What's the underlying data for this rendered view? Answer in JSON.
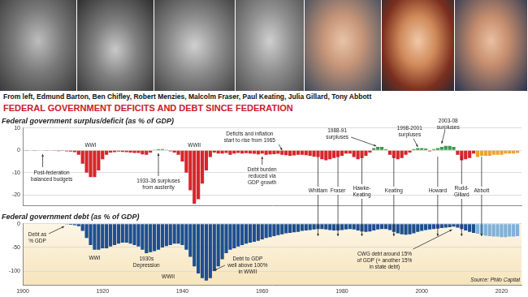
{
  "header": {
    "caption": "From left, Edmund Barton, Ben Chifley, Robert Menzies, Malcolm Fraser, Paul Keating, Julia Gillard, Tony Abbott",
    "title": "FEDERAL GOVERNMENT DEFICITS AND DEBT SINCE FEDERATION"
  },
  "chart_data": [
    {
      "type": "bar",
      "title": "Federal government surplus/deficit (as % of GDP)",
      "x": [
        1901,
        1902,
        1903,
        1904,
        1905,
        1906,
        1907,
        1908,
        1909,
        1910,
        1911,
        1912,
        1913,
        1914,
        1915,
        1916,
        1917,
        1918,
        1919,
        1920,
        1921,
        1922,
        1923,
        1924,
        1925,
        1926,
        1927,
        1928,
        1929,
        1930,
        1931,
        1932,
        1933,
        1934,
        1935,
        1936,
        1937,
        1938,
        1939,
        1940,
        1941,
        1942,
        1943,
        1944,
        1945,
        1946,
        1947,
        1948,
        1949,
        1950,
        1951,
        1952,
        1953,
        1954,
        1955,
        1956,
        1957,
        1958,
        1959,
        1960,
        1961,
        1962,
        1963,
        1964,
        1965,
        1966,
        1967,
        1968,
        1969,
        1970,
        1971,
        1972,
        1973,
        1974,
        1975,
        1976,
        1977,
        1978,
        1979,
        1980,
        1981,
        1982,
        1983,
        1984,
        1985,
        1986,
        1987,
        1988,
        1989,
        1990,
        1991,
        1992,
        1993,
        1994,
        1995,
        1996,
        1997,
        1998,
        1999,
        2000,
        2001,
        2002,
        2003,
        2004,
        2005,
        2006,
        2007,
        2008,
        2009,
        2010,
        2011,
        2012,
        2013,
        2014,
        2015,
        2016,
        2017,
        2018,
        2019,
        2020,
        2021,
        2022,
        2023,
        2024
      ],
      "values": [
        -0.3,
        -0.2,
        -0.3,
        -0.2,
        -0.2,
        -0.3,
        -0.2,
        -0.3,
        -0.4,
        -0.3,
        -0.5,
        -0.6,
        -0.8,
        -2,
        -6,
        -10,
        -12,
        -12,
        -9,
        -4,
        -2,
        -1,
        -0.8,
        -0.6,
        -0.7,
        -0.8,
        -1,
        -1.2,
        -1.2,
        -1.8,
        -2,
        -1,
        0.3,
        0.5,
        0.5,
        0.3,
        -0.5,
        -1,
        -2,
        -5,
        -10,
        -18,
        -24,
        -22,
        -15,
        -9,
        -3,
        -1,
        -1.5,
        -1.5,
        -1.2,
        -2,
        -1.5,
        -1.2,
        -1.5,
        -1.3,
        -1.5,
        -1.6,
        -1.8,
        -1.5,
        -2,
        -1.8,
        -1.7,
        -1.6,
        -2,
        -2.2,
        -2.5,
        -2.3,
        -2,
        -2,
        -2.2,
        -2.5,
        -2.8,
        -3,
        -4,
        -4.5,
        -4,
        -3.5,
        -3,
        -2.5,
        -1.5,
        -1.5,
        -3,
        -4,
        -3.5,
        -2.5,
        -1,
        1,
        1.5,
        1.5,
        0.5,
        -2,
        -3.5,
        -4,
        -3.5,
        -2,
        -1,
        0.5,
        1,
        1,
        0.8,
        -0.5,
        0.5,
        1,
        1.5,
        2,
        2,
        1.5,
        -2,
        -4.5,
        -4,
        -3.5,
        -1.5,
        -3,
        -2.5,
        -2.5,
        -2.5,
        -2,
        -2,
        -2,
        -1.5,
        -1.5,
        -1.5,
        -1.2
      ],
      "colors": [
        "#d7262b",
        "#d7262b",
        "#d7262b",
        "#d7262b",
        "#d7262b",
        "#d7262b",
        "#d7262b",
        "#d7262b",
        "#d7262b",
        "#d7262b",
        "#d7262b",
        "#d7262b",
        "#d7262b",
        "#d7262b",
        "#d7262b",
        "#d7262b",
        "#d7262b",
        "#d7262b",
        "#d7262b",
        "#d7262b",
        "#d7262b",
        "#d7262b",
        "#d7262b",
        "#d7262b",
        "#d7262b",
        "#d7262b",
        "#d7262b",
        "#d7262b",
        "#d7262b",
        "#d7262b",
        "#d7262b",
        "#d7262b",
        "#3a9a4a",
        "#3a9a4a",
        "#3a9a4a",
        "#3a9a4a",
        "#d7262b",
        "#d7262b",
        "#d7262b",
        "#d7262b",
        "#d7262b",
        "#d7262b",
        "#d7262b",
        "#d7262b",
        "#d7262b",
        "#d7262b",
        "#d7262b",
        "#d7262b",
        "#d7262b",
        "#d7262b",
        "#d7262b",
        "#d7262b",
        "#d7262b",
        "#d7262b",
        "#d7262b",
        "#d7262b",
        "#d7262b",
        "#d7262b",
        "#d7262b",
        "#d7262b",
        "#d7262b",
        "#d7262b",
        "#d7262b",
        "#d7262b",
        "#d7262b",
        "#d7262b",
        "#d7262b",
        "#d7262b",
        "#d7262b",
        "#d7262b",
        "#d7262b",
        "#d7262b",
        "#d7262b",
        "#d7262b",
        "#d7262b",
        "#d7262b",
        "#d7262b",
        "#d7262b",
        "#d7262b",
        "#d7262b",
        "#d7262b",
        "#d7262b",
        "#d7262b",
        "#d7262b",
        "#d7262b",
        "#d7262b",
        "#d7262b",
        "#3a9a4a",
        "#3a9a4a",
        "#3a9a4a",
        "#3a9a4a",
        "#d7262b",
        "#d7262b",
        "#d7262b",
        "#d7262b",
        "#d7262b",
        "#d7262b",
        "#3a9a4a",
        "#3a9a4a",
        "#3a9a4a",
        "#3a9a4a",
        "#d7262b",
        "#3a9a4a",
        "#3a9a4a",
        "#3a9a4a",
        "#3a9a4a",
        "#3a9a4a",
        "#3a9a4a",
        "#d7262b",
        "#d7262b",
        "#d7262b",
        "#d7262b",
        "#d7262b",
        "#f0a12a",
        "#f0a12a",
        "#f0a12a",
        "#f0a12a",
        "#f0a12a",
        "#f0a12a",
        "#f0a12a",
        "#f0a12a",
        "#f0a12a",
        "#f0a12a",
        "#f0a12a"
      ],
      "xlim": [
        1900,
        2025
      ],
      "ylim": [
        -25,
        10
      ],
      "yticks": [
        -20,
        -10,
        0,
        10
      ],
      "grid": true,
      "tick_labels": "y",
      "annotations": [
        {
          "text": "Post-federation\nbalanced budgets",
          "x": 1905
        },
        {
          "text": "WWI",
          "x": 1917
        },
        {
          "text": "1933-36 surpluses\nfrom austerity",
          "x": 1934
        },
        {
          "text": "WWII",
          "x": 1943
        },
        {
          "text": "Debt burden\nreduced via\nGDP growth",
          "x": 1960
        },
        {
          "text": "Deficits and inflation\nstart to rise from 1965",
          "x": 1965
        },
        {
          "text": "1988-91\nsurpluses",
          "x": 1989
        },
        {
          "text": "1998-2001\nsurpluses",
          "x": 1999
        },
        {
          "text": "2003-08\nsurpluses",
          "x": 2005
        },
        {
          "text": "Whitlam",
          "x": 1974
        },
        {
          "text": "Fraser",
          "x": 1979
        },
        {
          "text": "Hawke-\nKeating",
          "x": 1985
        },
        {
          "text": "Keating",
          "x": 1993
        },
        {
          "text": "Howard",
          "x": 2004
        },
        {
          "text": "Rudd-\nGillard",
          "x": 2010
        },
        {
          "text": "Abbott",
          "x": 2015
        }
      ]
    },
    {
      "type": "bar",
      "title": "Federal government debt (as % of GDP)",
      "x": [
        1901,
        1902,
        1903,
        1904,
        1905,
        1906,
        1907,
        1908,
        1909,
        1910,
        1911,
        1912,
        1913,
        1914,
        1915,
        1916,
        1917,
        1918,
        1919,
        1920,
        1921,
        1922,
        1923,
        1924,
        1925,
        1926,
        1927,
        1928,
        1929,
        1930,
        1931,
        1932,
        1933,
        1934,
        1935,
        1936,
        1937,
        1938,
        1939,
        1940,
        1941,
        1942,
        1943,
        1944,
        1945,
        1946,
        1947,
        1948,
        1949,
        1950,
        1951,
        1952,
        1953,
        1954,
        1955,
        1956,
        1957,
        1958,
        1959,
        1960,
        1961,
        1962,
        1963,
        1964,
        1965,
        1966,
        1967,
        1968,
        1969,
        1970,
        1971,
        1972,
        1973,
        1974,
        1975,
        1976,
        1977,
        1978,
        1979,
        1980,
        1981,
        1982,
        1983,
        1984,
        1985,
        1986,
        1987,
        1988,
        1989,
        1990,
        1991,
        1992,
        1993,
        1994,
        1995,
        1996,
        1997,
        1998,
        1999,
        2000,
        2001,
        2002,
        2003,
        2004,
        2005,
        2006,
        2007,
        2008,
        2009,
        2010,
        2011,
        2012,
        2013,
        2014,
        2015,
        2016,
        2017,
        2018,
        2019,
        2020,
        2021,
        2022,
        2023,
        2024
      ],
      "values": [
        0,
        0,
        0,
        0,
        0,
        0,
        0,
        0,
        0,
        0,
        -1,
        -2,
        -3,
        -5,
        -15,
        -30,
        -45,
        -55,
        -55,
        -52,
        -52,
        -48,
        -45,
        -42,
        -40,
        -40,
        -42,
        -45,
        -48,
        -55,
        -62,
        -60,
        -58,
        -55,
        -50,
        -47,
        -45,
        -42,
        -42,
        -45,
        -55,
        -70,
        -90,
        -105,
        -115,
        -120,
        -115,
        -100,
        -90,
        -75,
        -62,
        -55,
        -52,
        -48,
        -45,
        -42,
        -40,
        -38,
        -36,
        -33,
        -30,
        -28,
        -26,
        -24,
        -22,
        -20,
        -19,
        -18,
        -17,
        -15,
        -14,
        -13,
        -12,
        -11,
        -11,
        -12,
        -13,
        -14,
        -14,
        -13,
        -12,
        -11,
        -12,
        -14,
        -16,
        -17,
        -16,
        -14,
        -12,
        -11,
        -11,
        -13,
        -17,
        -20,
        -22,
        -23,
        -22,
        -20,
        -17,
        -15,
        -13,
        -12,
        -11,
        -10,
        -9,
        -8,
        -7,
        -6,
        -8,
        -11,
        -14,
        -17,
        -19,
        -21,
        -23,
        -25,
        -26,
        -27,
        -27,
        -28,
        -28,
        -27,
        -27,
        -26
      ],
      "colors": [
        "#1d4f91",
        "#1d4f91",
        "#1d4f91",
        "#1d4f91",
        "#1d4f91",
        "#1d4f91",
        "#1d4f91",
        "#1d4f91",
        "#1d4f91",
        "#1d4f91",
        "#1d4f91",
        "#1d4f91",
        "#1d4f91",
        "#1d4f91",
        "#1d4f91",
        "#1d4f91",
        "#1d4f91",
        "#1d4f91",
        "#1d4f91",
        "#1d4f91",
        "#1d4f91",
        "#1d4f91",
        "#1d4f91",
        "#1d4f91",
        "#1d4f91",
        "#1d4f91",
        "#1d4f91",
        "#1d4f91",
        "#1d4f91",
        "#1d4f91",
        "#1d4f91",
        "#1d4f91",
        "#1d4f91",
        "#1d4f91",
        "#1d4f91",
        "#1d4f91",
        "#1d4f91",
        "#1d4f91",
        "#1d4f91",
        "#1d4f91",
        "#1d4f91",
        "#1d4f91",
        "#1d4f91",
        "#1d4f91",
        "#1d4f91",
        "#1d4f91",
        "#1d4f91",
        "#1d4f91",
        "#1d4f91",
        "#1d4f91",
        "#1d4f91",
        "#1d4f91",
        "#1d4f91",
        "#1d4f91",
        "#1d4f91",
        "#1d4f91",
        "#1d4f91",
        "#1d4f91",
        "#1d4f91",
        "#1d4f91",
        "#1d4f91",
        "#1d4f91",
        "#1d4f91",
        "#1d4f91",
        "#1d4f91",
        "#1d4f91",
        "#1d4f91",
        "#1d4f91",
        "#1d4f91",
        "#1d4f91",
        "#1d4f91",
        "#1d4f91",
        "#1d4f91",
        "#1d4f91",
        "#1d4f91",
        "#1d4f91",
        "#1d4f91",
        "#1d4f91",
        "#1d4f91",
        "#1d4f91",
        "#1d4f91",
        "#1d4f91",
        "#1d4f91",
        "#1d4f91",
        "#1d4f91",
        "#1d4f91",
        "#1d4f91",
        "#1d4f91",
        "#1d4f91",
        "#1d4f91",
        "#1d4f91",
        "#1d4f91",
        "#1d4f91",
        "#1d4f91",
        "#1d4f91",
        "#1d4f91",
        "#1d4f91",
        "#1d4f91",
        "#1d4f91",
        "#1d4f91",
        "#1d4f91",
        "#1d4f91",
        "#1d4f91",
        "#1d4f91",
        "#1d4f91",
        "#1d4f91",
        "#1d4f91",
        "#1d4f91",
        "#1d4f91",
        "#1d4f91",
        "#1d4f91",
        "#1d4f91",
        "#1d4f91",
        "#7fb0d8",
        "#7fb0d8",
        "#7fb0d8",
        "#7fb0d8",
        "#7fb0d8",
        "#7fb0d8",
        "#7fb0d8",
        "#7fb0d8",
        "#7fb0d8",
        "#7fb0d8",
        "#7fb0d8"
      ],
      "xlim": [
        1900,
        2025
      ],
      "xticks": [
        1900,
        1920,
        1940,
        1960,
        1980,
        2000,
        2020
      ],
      "ylim": [
        -130,
        0
      ],
      "yticks": [
        -100,
        -50,
        0
      ],
      "grid": true,
      "source": "Source: Philo Capital",
      "annotations": [
        {
          "text": "Debt as\n% GDP",
          "x": 1911
        },
        {
          "text": "WWI",
          "x": 1918
        },
        {
          "text": "1930s\nDepression",
          "x": 1931
        },
        {
          "text": "WWII",
          "x": 1945
        },
        {
          "text": "Debt to GDP\nwell above 100%\nin WWII",
          "x": 1947
        },
        {
          "text": "CWG debt around 15%\nof GDP (+ another 15%\nin state debt)",
          "x": 2008
        }
      ]
    }
  ]
}
